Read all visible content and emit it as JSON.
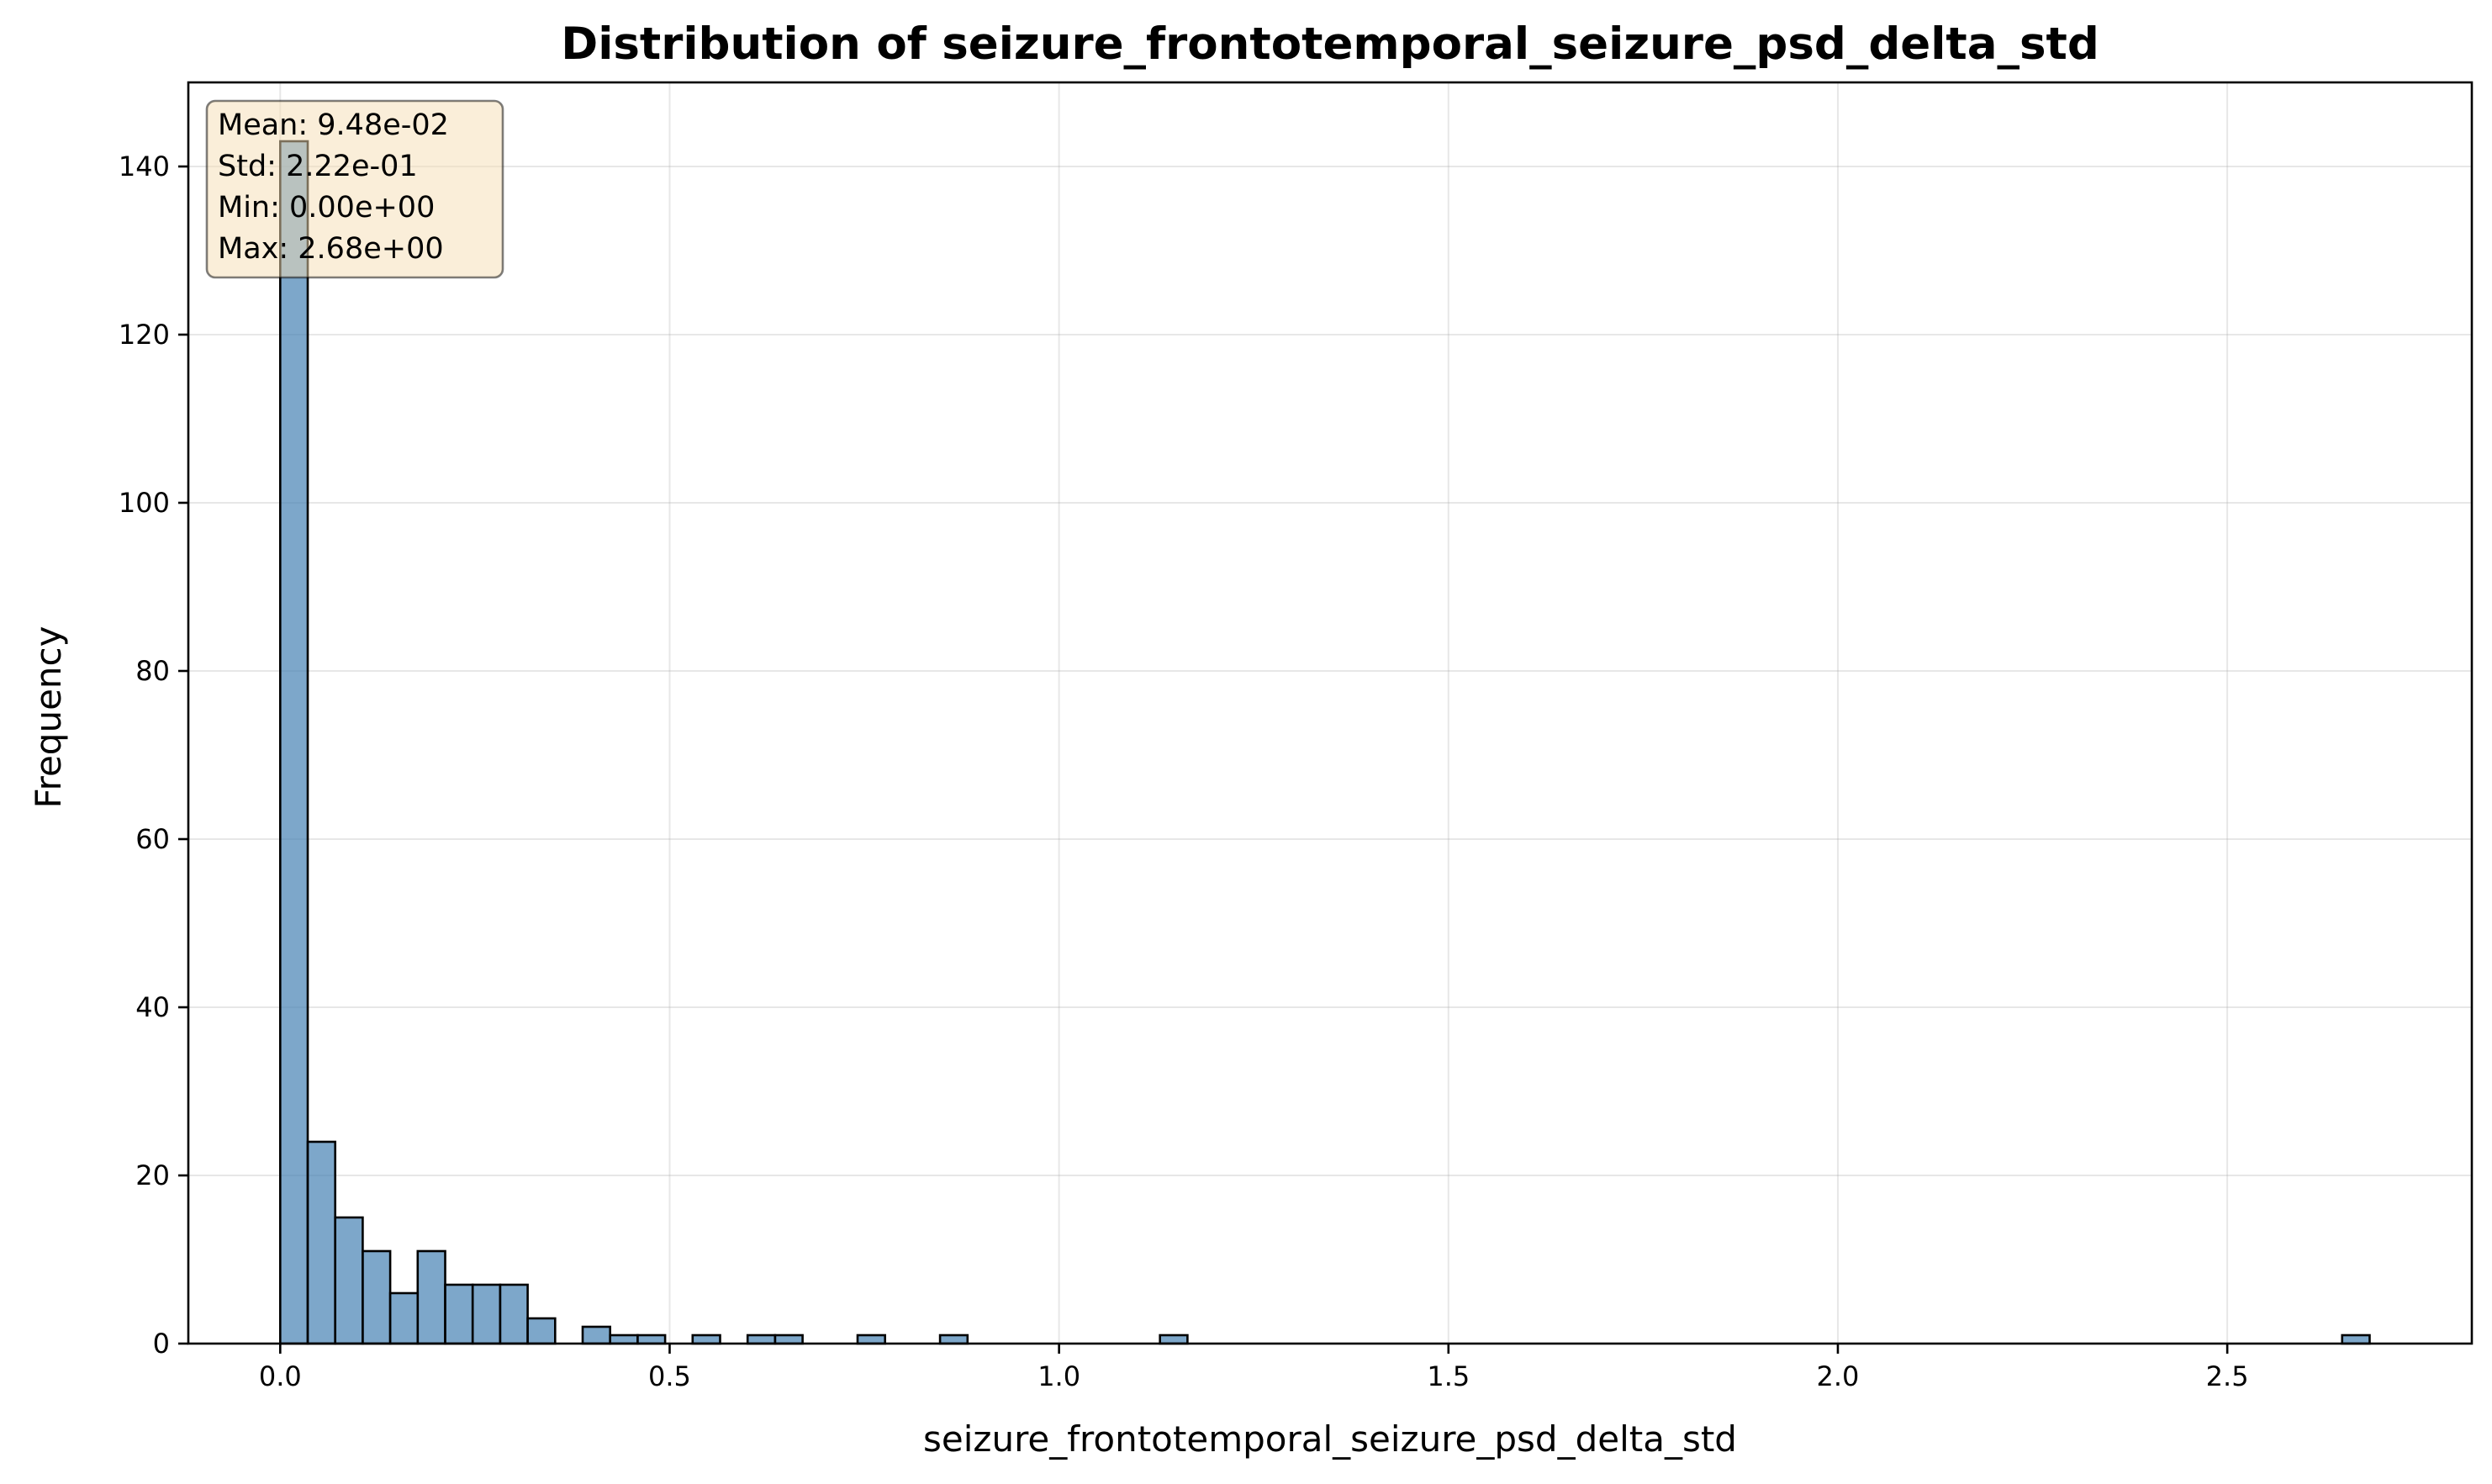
{
  "chart_data": {
    "type": "bar",
    "title": "Distribution of seizure_frontotemporal_seizure_psd_delta_std",
    "xlabel": "seizure_frontotemporal_seizure_psd_delta_std",
    "ylabel": "Frequency",
    "xlim": [
      -0.118,
      2.814
    ],
    "ylim": [
      0,
      150
    ],
    "xticks": [
      0.0,
      0.5,
      1.0,
      1.5,
      2.0,
      2.5
    ],
    "xtick_labels": [
      "0.0",
      "0.5",
      "1.0",
      "1.5",
      "2.0",
      "2.5"
    ],
    "yticks": [
      0,
      20,
      40,
      60,
      80,
      100,
      120,
      140
    ],
    "ytick_labels": [
      "0",
      "20",
      "40",
      "60",
      "80",
      "100",
      "120",
      "140"
    ],
    "grid": true,
    "bin_start": 0.0,
    "bin_width": 0.0353,
    "bins": [
      {
        "index": 0,
        "count": 143
      },
      {
        "index": 1,
        "count": 24
      },
      {
        "index": 2,
        "count": 15
      },
      {
        "index": 3,
        "count": 11
      },
      {
        "index": 4,
        "count": 6
      },
      {
        "index": 5,
        "count": 11
      },
      {
        "index": 6,
        "count": 7
      },
      {
        "index": 7,
        "count": 7
      },
      {
        "index": 8,
        "count": 7
      },
      {
        "index": 9,
        "count": 3
      },
      {
        "index": 11,
        "count": 2
      },
      {
        "index": 12,
        "count": 1
      },
      {
        "index": 13,
        "count": 1
      },
      {
        "index": 15,
        "count": 1
      },
      {
        "index": 17,
        "count": 1
      },
      {
        "index": 18,
        "count": 1
      },
      {
        "index": 21,
        "count": 1
      },
      {
        "index": 24,
        "count": 1
      },
      {
        "index": 32,
        "count": 1
      },
      {
        "index": 75,
        "count": 1
      }
    ],
    "stats_box": {
      "lines": [
        "Mean: 9.48e-02",
        "Std: 2.22e-01",
        "Min: 0.00e+00",
        "Max: 2.68e+00"
      ],
      "placement": "top-left",
      "background": "#f5deb3"
    },
    "colors": {
      "bar_fill": "#4682b4",
      "bar_edge": "#000000",
      "grid": "#b0b0b0"
    }
  }
}
